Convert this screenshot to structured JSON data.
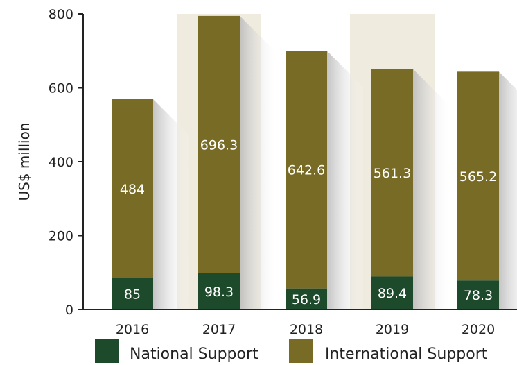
{
  "chart_data": {
    "type": "bar",
    "stacked": true,
    "categories": [
      "2016",
      "2017",
      "2018",
      "2019",
      "2020"
    ],
    "series": [
      {
        "name": "National Support",
        "color": "#1e4a2c",
        "values": [
          85,
          98.3,
          56.9,
          89.4,
          78.3
        ]
      },
      {
        "name": "International Support",
        "color": "#786b26",
        "values": [
          484,
          696.3,
          642.6,
          561.3,
          565.2
        ]
      }
    ],
    "xlabel": "",
    "ylabel": "US$ million",
    "ylim": [
      0,
      800
    ],
    "yticks": [
      "0",
      "200",
      "400",
      "600",
      "800"
    ],
    "highlighted_categories": [
      "2017",
      "2019"
    ],
    "highlight_color": "#f0ebdf",
    "grid": false,
    "legend_position": "bottom"
  }
}
